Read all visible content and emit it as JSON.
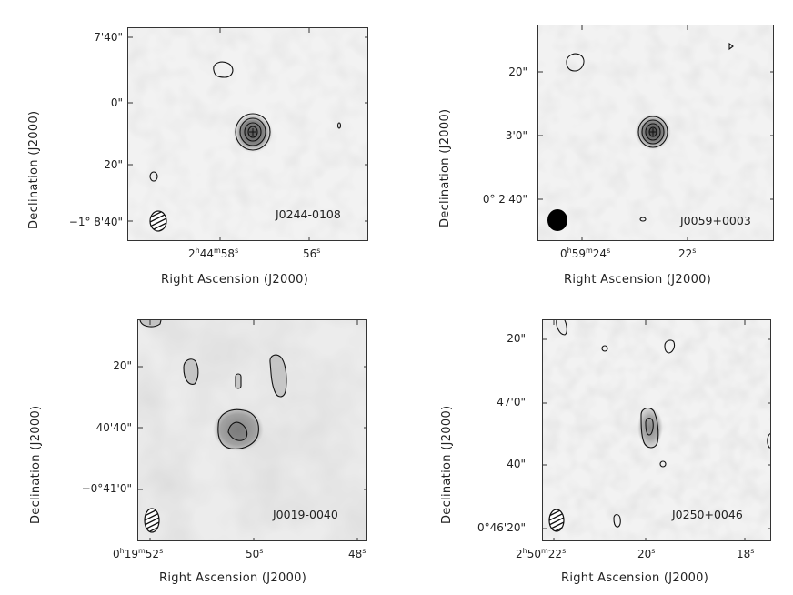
{
  "panels": [
    {
      "source": "J0244-0108",
      "xlabel": "Right Ascension (J2000)",
      "ylabel": "Declination (J2000)",
      "xticks": [
        {
          "h": "2",
          "m": "44",
          "s": "58"
        },
        {
          "h": "",
          "m": "",
          "s": "56"
        }
      ],
      "yticks": [
        "7'40\"",
        "0\"",
        "20\"",
        "−1° 8'40\""
      ]
    },
    {
      "source": "J0059+0003",
      "xlabel": "Right Ascension (J2000)",
      "ylabel": "Declination (J2000)",
      "xticks": [
        {
          "h": "0",
          "m": "59",
          "s": "24"
        },
        {
          "h": "",
          "m": "",
          "s": "22"
        }
      ],
      "yticks": [
        "20\"",
        "3'0\"",
        "0° 2'40\""
      ]
    },
    {
      "source": "J0019-0040",
      "xlabel": "Right Ascension (J2000)",
      "ylabel": "Declination (J2000)",
      "xticks": [
        {
          "h": "0",
          "m": "19",
          "s": "52"
        },
        {
          "h": "",
          "m": "",
          "s": "50"
        },
        {
          "h": "",
          "m": "",
          "s": "48"
        }
      ],
      "yticks": [
        "20\"",
        "40'40\"",
        "−0°41'0\""
      ]
    },
    {
      "source": "J0250+0046",
      "xlabel": "Right Ascension (J2000)",
      "ylabel": "Declination (J2000)",
      "xticks": [
        {
          "h": "2",
          "m": "50",
          "s": "22"
        },
        {
          "h": "",
          "m": "",
          "s": "20"
        },
        {
          "h": "",
          "m": "",
          "s": "18"
        }
      ],
      "yticks": [
        "20\"",
        "47'0\"",
        "40\"",
        "0°46'20\""
      ]
    }
  ]
}
